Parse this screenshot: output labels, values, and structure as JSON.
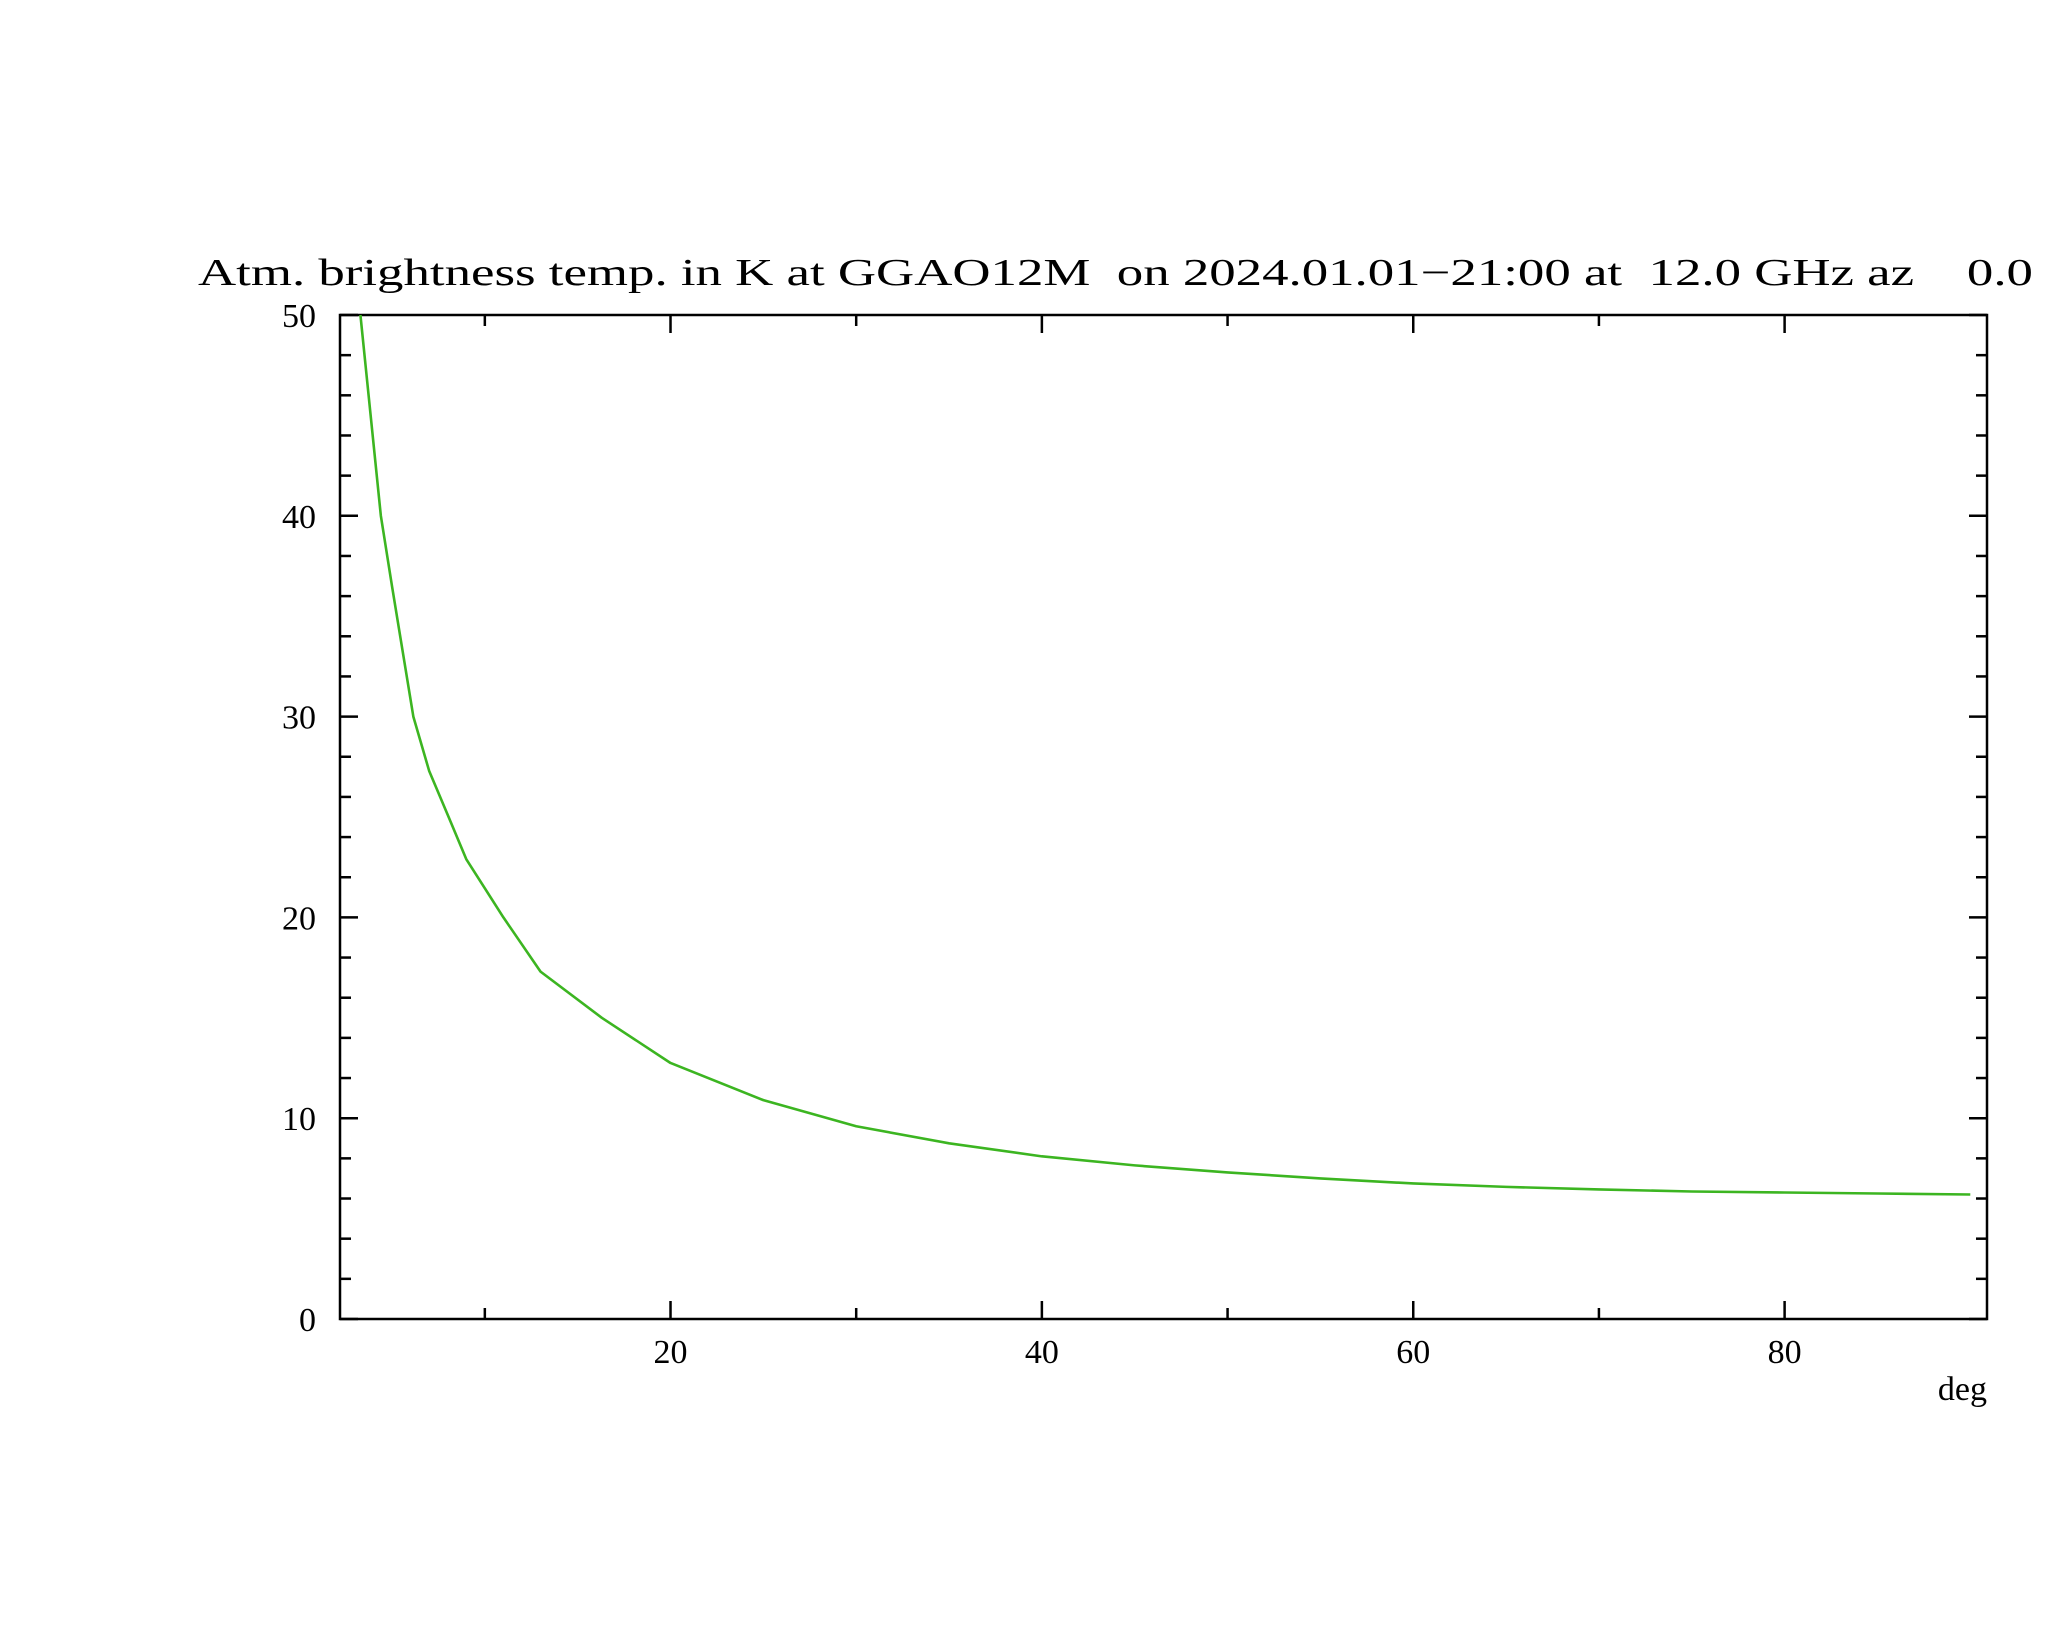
{
  "chart_data": {
    "type": "line",
    "title": "Atm. brightness temp. in K at GGAO12M  on 2024.01.01−21:00 at  12.0 GHz az    0.0",
    "x_label": "deg",
    "x": [
      3.3,
      4.4,
      5,
      6.15,
      7,
      8.05,
      9,
      11,
      13,
      16.3,
      20,
      25,
      30,
      35,
      40,
      45,
      50,
      55,
      60,
      65,
      70,
      75,
      80,
      85,
      90
    ],
    "series": [
      {
        "color": "#3cb521",
        "values": [
          50,
          40,
          36.5,
          30,
          27.3,
          25,
          22.9,
          20,
          17.3,
          15,
          12.75,
          10.9,
          9.6,
          8.75,
          8.1,
          7.65,
          7.3,
          7.0,
          6.75,
          6.58,
          6.45,
          6.35,
          6.3,
          6.25,
          6.2
        ]
      }
    ],
    "xlim": [
      2.2,
      90.9
    ],
    "xticks": [
      20,
      40,
      60,
      80
    ],
    "xminorticks": [
      10,
      30,
      50,
      70
    ],
    "ylim": [
      0,
      50
    ],
    "yticks": [
      0,
      10,
      20,
      30,
      40,
      50
    ],
    "yminorticks": [
      2,
      4,
      6,
      8,
      12,
      14,
      16,
      18,
      22,
      24,
      26,
      28,
      32,
      34,
      36,
      38,
      42,
      44,
      46,
      48
    ]
  }
}
